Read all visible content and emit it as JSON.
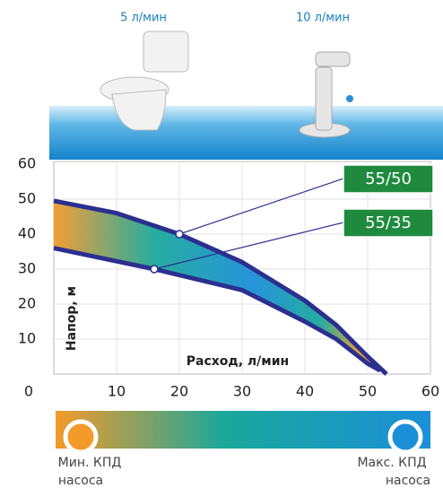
{
  "usage": [
    {
      "label": "5 л/мин"
    },
    {
      "label": "10 л/мин"
    }
  ],
  "chart_data": {
    "type": "line",
    "y_label": "Напор, м",
    "x_label": "Расход, л/мин",
    "xlim": [
      0,
      60
    ],
    "ylim": [
      0,
      60
    ],
    "xticks": [
      0,
      10,
      20,
      30,
      40,
      50,
      60
    ],
    "yticks": [
      10,
      20,
      30,
      40,
      50,
      60
    ],
    "grid": true,
    "series": [
      {
        "name": "55/50",
        "color": "#2b2f8f",
        "x": [
          0,
          10,
          20,
          30,
          40,
          45,
          50,
          53
        ],
        "values": [
          49.5,
          46,
          40,
          32,
          21,
          14,
          5,
          0
        ],
        "marker": {
          "x": 20,
          "y": 40
        }
      },
      {
        "name": "55/35",
        "color": "#2b2f8f",
        "x": [
          0,
          8,
          16,
          30,
          40,
          45,
          50,
          52
        ],
        "values": [
          36,
          33,
          30,
          24,
          15,
          10,
          3,
          1
        ],
        "marker": {
          "x": 16,
          "y": 30
        }
      }
    ]
  },
  "efficiency_scale": {
    "min_label": [
      "Мин. КПД",
      "насоса"
    ],
    "max_label": [
      "Макс. КПД",
      "насоса"
    ]
  }
}
